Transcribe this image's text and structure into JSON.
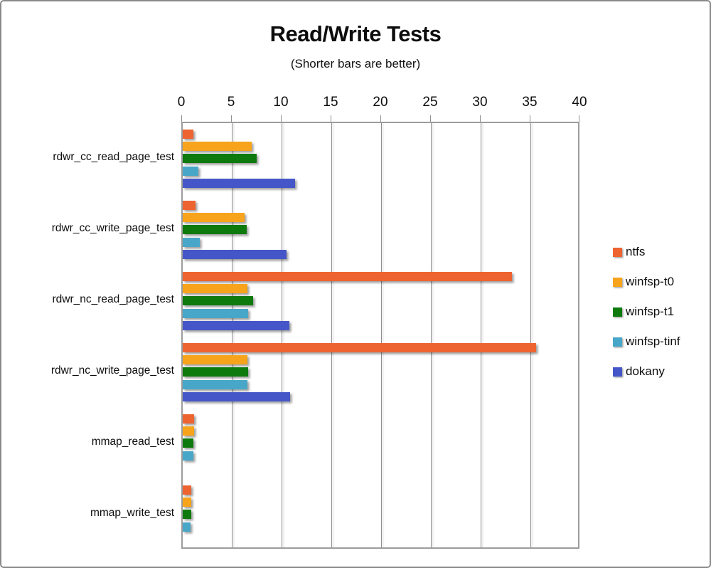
{
  "window": {
    "background": "#ffffff",
    "border_color": "#8a8a8a"
  },
  "chart_data": {
    "type": "bar",
    "orientation": "horizontal",
    "title": "Read/Write Tests",
    "subtitle": "(Shorter bars are better)",
    "note": "horizontal grouped bar chart, lower value is better",
    "categories": [
      "rdwr_cc_read_page_test",
      "rdwr_cc_write_page_test",
      "rdwr_nc_read_page_test",
      "rdwr_nc_write_page_test",
      "mmap_read_test",
      "mmap_write_test"
    ],
    "series": [
      {
        "name": "ntfs",
        "color": "#ee6430",
        "values": [
          1.1,
          1.3,
          33.1,
          35.5,
          1.15,
          0.85
        ]
      },
      {
        "name": "winfsp-t0",
        "color": "#f7a41c",
        "values": [
          6.9,
          6.2,
          6.5,
          6.5,
          1.15,
          0.85
        ]
      },
      {
        "name": "winfsp-t1",
        "color": "#0e7a0e",
        "values": [
          7.4,
          6.4,
          7.1,
          6.6,
          1.05,
          0.85
        ]
      },
      {
        "name": "winfsp-tinf",
        "color": "#48a7c8",
        "values": [
          1.6,
          1.7,
          6.6,
          6.5,
          1.05,
          0.8
        ]
      },
      {
        "name": "dokany",
        "color": "#4557c8",
        "values": [
          11.3,
          10.4,
          10.7,
          10.8,
          0,
          0
        ]
      }
    ],
    "x_axis": {
      "min": 0,
      "max": 40,
      "tick_interval": 5,
      "tick_labels": [
        "0",
        "5",
        "10",
        "15",
        "20",
        "25",
        "30",
        "35",
        "40"
      ]
    },
    "grid": true,
    "legend_position": "right",
    "frame_color": "#9c9c9c"
  }
}
